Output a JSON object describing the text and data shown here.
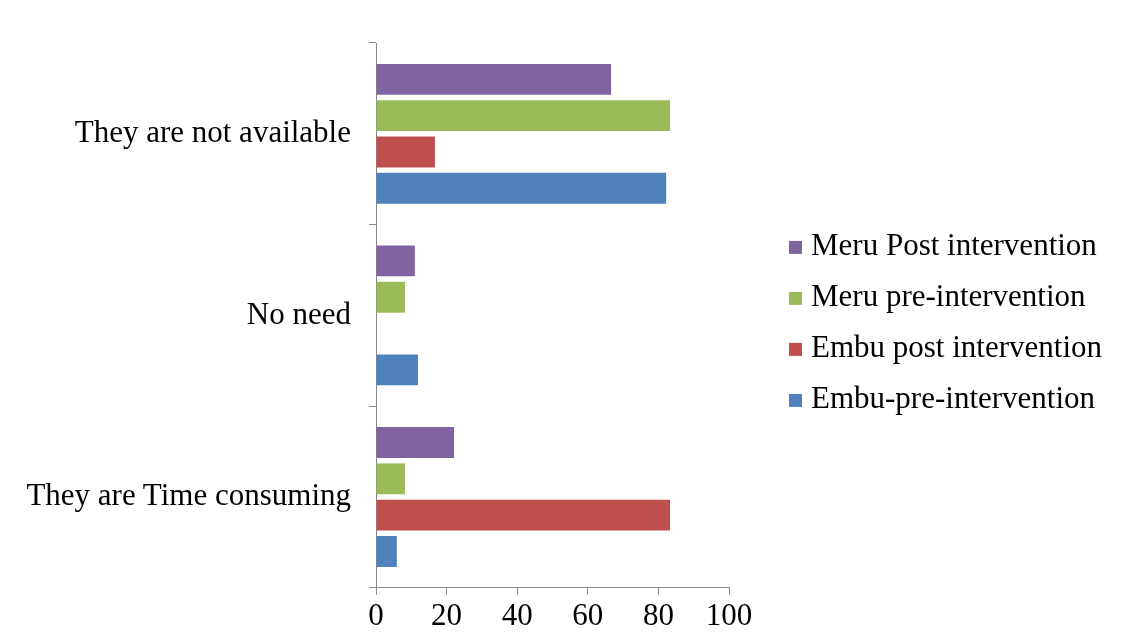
{
  "chart_data": {
    "type": "bar",
    "orientation": "horizontal",
    "legend": "right",
    "categories": [
      "They are not available",
      "No need",
      "They are Time consuming"
    ],
    "series": [
      {
        "name": "Meru Post intervention",
        "color": "#8064a2",
        "values": [
          66.6,
          11,
          22.1
        ]
      },
      {
        "name": "Meru pre-intervention",
        "color": "#9bbb59",
        "values": [
          83.3,
          8.2,
          8.2
        ]
      },
      {
        "name": "Embu post intervention",
        "color": "#c0504d",
        "values": [
          16.7,
          0,
          83.3
        ]
      },
      {
        "name": "Embu-pre-intervention",
        "color": "#4f81bd",
        "values": [
          82.2,
          11.9,
          5.9
        ]
      }
    ],
    "xlim": [
      0,
      100
    ],
    "xticks": [
      0,
      20,
      40,
      60,
      80,
      100
    ]
  }
}
